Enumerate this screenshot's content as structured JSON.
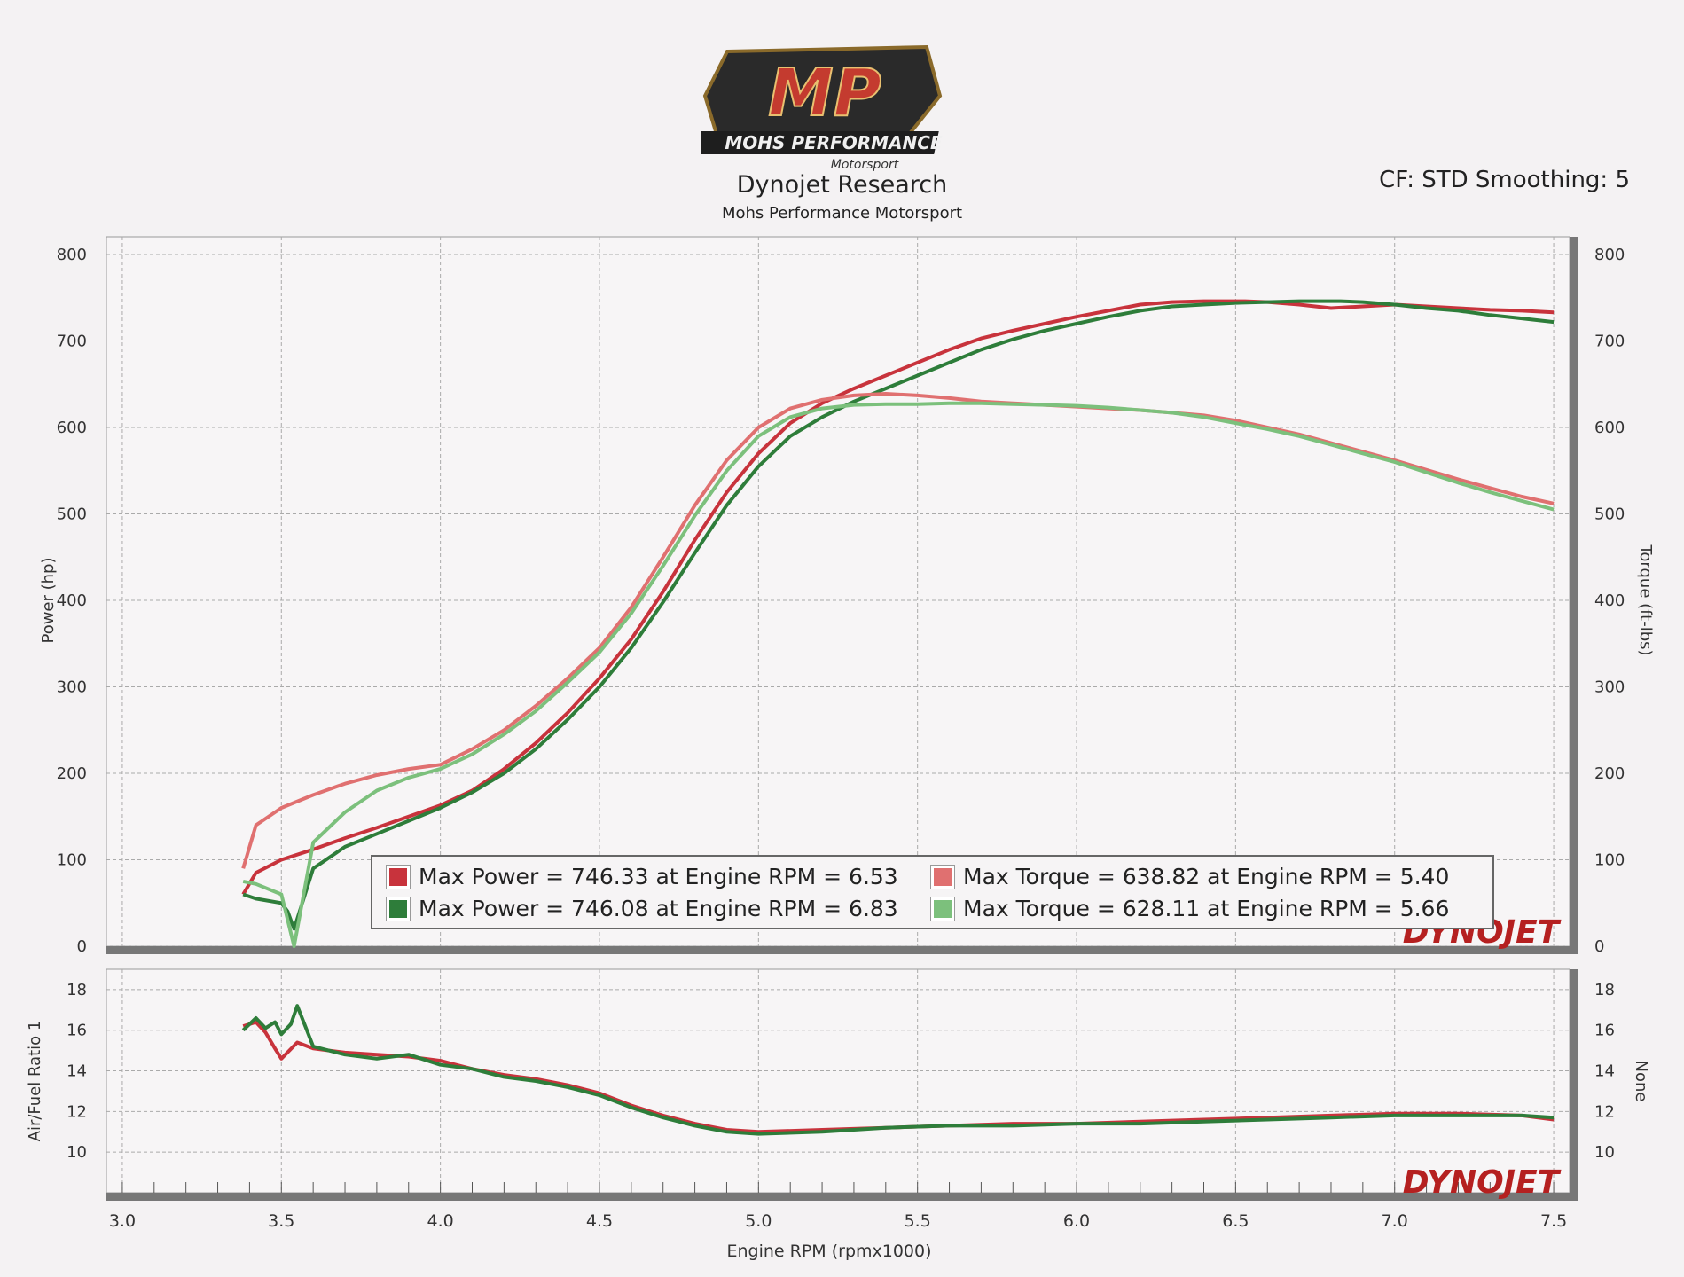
{
  "header": {
    "logo_text": "MP",
    "logo_subtext": "MOHS PERFORMANCE",
    "logo_script": "Motorsport",
    "title": "Dynojet Research",
    "subtitle": "Mohs Performance Motorsport",
    "cf_label": "CF: STD Smoothing: 5"
  },
  "watermark": "DYNOJET",
  "legend": [
    {
      "label": "Max Power = 746.33 at Engine RPM = 6.53",
      "color": "#c8333c"
    },
    {
      "label": "Max Power = 746.08 at Engine RPM = 6.83",
      "color": "#2e7d3a"
    },
    {
      "label": "Max Torque = 638.82 at Engine RPM = 5.40",
      "color": "#e07070"
    },
    {
      "label": "Max Torque = 628.11 at Engine RPM = 5.66",
      "color": "#7cc07c"
    }
  ],
  "chart_data": [
    {
      "type": "line",
      "ylabel": "Power (hp)",
      "y2label": "Torque (ft-lbs)",
      "xlim": [
        3.0,
        7.5
      ],
      "ylim": [
        0,
        800
      ],
      "y2lim": [
        0,
        800
      ],
      "yticks": [
        0,
        100,
        200,
        300,
        400,
        500,
        600,
        700,
        800
      ],
      "y2ticks": [
        0,
        100,
        200,
        300,
        400,
        500,
        600,
        700,
        800
      ],
      "grid": true,
      "series": [
        {
          "name": "Max Power = 746.33 at Engine RPM = 6.53",
          "color": "#c8333c",
          "x": [
            3.38,
            3.42,
            3.5,
            3.6,
            3.7,
            3.8,
            3.9,
            4.0,
            4.1,
            4.2,
            4.3,
            4.4,
            4.5,
            4.6,
            4.7,
            4.8,
            4.9,
            5.0,
            5.1,
            5.2,
            5.3,
            5.4,
            5.5,
            5.6,
            5.7,
            5.8,
            5.9,
            6.0,
            6.1,
            6.2,
            6.3,
            6.4,
            6.53,
            6.6,
            6.7,
            6.8,
            6.9,
            7.0,
            7.1,
            7.2,
            7.3,
            7.4,
            7.5
          ],
          "y": [
            60,
            85,
            100,
            112,
            125,
            137,
            150,
            163,
            180,
            205,
            235,
            270,
            310,
            355,
            410,
            470,
            525,
            570,
            605,
            628,
            645,
            660,
            675,
            690,
            703,
            712,
            720,
            728,
            735,
            742,
            745,
            746,
            746,
            745,
            742,
            738,
            740,
            742,
            740,
            738,
            736,
            735,
            733
          ]
        },
        {
          "name": "Max Power = 746.08 at Engine RPM = 6.83",
          "color": "#2e7d3a",
          "x": [
            3.38,
            3.42,
            3.5,
            3.52,
            3.54,
            3.6,
            3.7,
            3.8,
            3.9,
            4.0,
            4.1,
            4.2,
            4.3,
            4.4,
            4.5,
            4.6,
            4.7,
            4.8,
            4.9,
            5.0,
            5.1,
            5.2,
            5.3,
            5.4,
            5.5,
            5.6,
            5.7,
            5.8,
            5.9,
            6.0,
            6.1,
            6.2,
            6.3,
            6.4,
            6.5,
            6.6,
            6.7,
            6.83,
            6.9,
            7.0,
            7.1,
            7.2,
            7.3,
            7.4,
            7.5
          ],
          "y": [
            60,
            55,
            50,
            40,
            20,
            90,
            115,
            130,
            145,
            160,
            178,
            200,
            228,
            262,
            300,
            345,
            398,
            455,
            510,
            555,
            590,
            612,
            630,
            645,
            660,
            675,
            690,
            702,
            712,
            720,
            728,
            735,
            740,
            742,
            744,
            745,
            746,
            746,
            745,
            742,
            738,
            735,
            730,
            726,
            722
          ]
        },
        {
          "name": "Max Torque = 638.82 at Engine RPM = 5.40",
          "color": "#e07070",
          "x": [
            3.38,
            3.42,
            3.5,
            3.6,
            3.7,
            3.8,
            3.9,
            4.0,
            4.1,
            4.2,
            4.3,
            4.4,
            4.5,
            4.6,
            4.7,
            4.8,
            4.9,
            5.0,
            5.1,
            5.2,
            5.3,
            5.4,
            5.5,
            5.6,
            5.7,
            5.8,
            5.9,
            6.0,
            6.1,
            6.2,
            6.3,
            6.4,
            6.5,
            6.6,
            6.7,
            6.8,
            6.9,
            7.0,
            7.1,
            7.2,
            7.3,
            7.4,
            7.5
          ],
          "y": [
            90,
            140,
            160,
            175,
            188,
            198,
            205,
            210,
            228,
            250,
            278,
            310,
            345,
            392,
            450,
            510,
            562,
            600,
            622,
            632,
            637,
            639,
            637,
            634,
            630,
            628,
            626,
            624,
            622,
            620,
            617,
            614,
            608,
            600,
            592,
            582,
            572,
            562,
            551,
            540,
            530,
            520,
            512
          ]
        },
        {
          "name": "Max Torque = 628.11 at Engine RPM = 5.66",
          "color": "#7cc07c",
          "x": [
            3.38,
            3.42,
            3.5,
            3.52,
            3.54,
            3.6,
            3.7,
            3.8,
            3.9,
            4.0,
            4.1,
            4.2,
            4.3,
            4.4,
            4.5,
            4.6,
            4.7,
            4.8,
            4.9,
            5.0,
            5.1,
            5.2,
            5.3,
            5.4,
            5.5,
            5.6,
            5.66,
            5.7,
            5.8,
            5.9,
            6.0,
            6.1,
            6.2,
            6.3,
            6.4,
            6.5,
            6.6,
            6.7,
            6.8,
            6.9,
            7.0,
            7.1,
            7.2,
            7.3,
            7.4,
            7.5
          ],
          "y": [
            75,
            72,
            60,
            30,
            0,
            120,
            155,
            180,
            195,
            205,
            222,
            245,
            272,
            305,
            340,
            385,
            440,
            498,
            550,
            590,
            612,
            622,
            626,
            627,
            627,
            628,
            628,
            628,
            627,
            626,
            625,
            623,
            620,
            617,
            612,
            605,
            598,
            590,
            580,
            570,
            560,
            548,
            536,
            525,
            515,
            505
          ]
        }
      ]
    },
    {
      "type": "line",
      "ylabel": "Air/Fuel Ratio 1",
      "y2label": "None",
      "xlabel": "Engine RPM (rpmx1000)",
      "xlim": [
        3.0,
        7.5
      ],
      "ylim": [
        8,
        19
      ],
      "yticks": [
        10,
        12,
        14,
        16,
        18
      ],
      "y2ticks": [
        10,
        12,
        14,
        16,
        18
      ],
      "xticks": [
        3.0,
        3.5,
        4.0,
        4.5,
        5.0,
        5.5,
        6.0,
        6.5,
        7.0,
        7.5
      ],
      "xticklabels": [
        "3.0",
        "3.5",
        "4.0",
        "4.5",
        "5.0",
        "5.5",
        "6.0",
        "6.5",
        "7.0",
        "7.5"
      ],
      "grid": true,
      "series": [
        {
          "color": "#c8333c",
          "x": [
            3.38,
            3.42,
            3.45,
            3.48,
            3.5,
            3.55,
            3.6,
            3.7,
            3.8,
            3.9,
            4.0,
            4.1,
            4.2,
            4.3,
            4.4,
            4.5,
            4.6,
            4.7,
            4.8,
            4.9,
            5.0,
            5.2,
            5.4,
            5.6,
            5.8,
            6.0,
            6.2,
            6.4,
            6.6,
            6.8,
            7.0,
            7.2,
            7.4,
            7.5
          ],
          "y": [
            16.2,
            16.4,
            15.9,
            15.1,
            14.6,
            15.4,
            15.1,
            14.9,
            14.8,
            14.7,
            14.5,
            14.1,
            13.8,
            13.6,
            13.3,
            12.9,
            12.3,
            11.8,
            11.4,
            11.1,
            11.0,
            11.1,
            11.2,
            11.3,
            11.4,
            11.4,
            11.5,
            11.6,
            11.7,
            11.8,
            11.9,
            11.9,
            11.8,
            11.6
          ]
        },
        {
          "color": "#2e7d3a",
          "x": [
            3.38,
            3.42,
            3.45,
            3.48,
            3.5,
            3.53,
            3.55,
            3.58,
            3.6,
            3.7,
            3.8,
            3.9,
            4.0,
            4.1,
            4.2,
            4.3,
            4.4,
            4.5,
            4.6,
            4.7,
            4.8,
            4.9,
            5.0,
            5.2,
            5.4,
            5.6,
            5.8,
            6.0,
            6.2,
            6.4,
            6.6,
            6.8,
            7.0,
            7.2,
            7.4,
            7.5
          ],
          "y": [
            16.0,
            16.6,
            16.1,
            16.4,
            15.8,
            16.3,
            17.2,
            16.0,
            15.2,
            14.8,
            14.6,
            14.8,
            14.3,
            14.1,
            13.7,
            13.5,
            13.2,
            12.8,
            12.2,
            11.7,
            11.3,
            11.0,
            10.9,
            11.0,
            11.2,
            11.3,
            11.3,
            11.4,
            11.4,
            11.5,
            11.6,
            11.7,
            11.8,
            11.8,
            11.8,
            11.7
          ]
        }
      ]
    }
  ]
}
